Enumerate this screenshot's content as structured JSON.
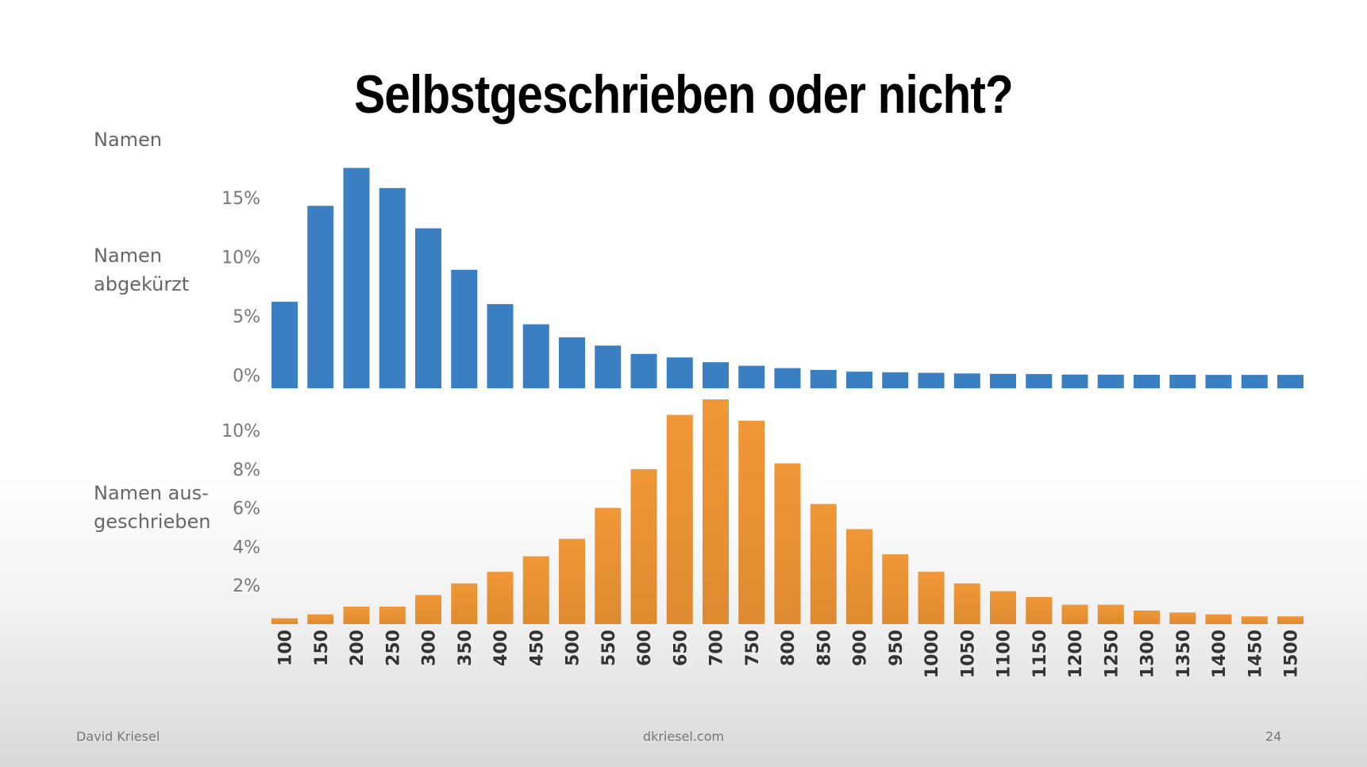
{
  "slide": {
    "title": "Selbstgeschrieben oder nicht?",
    "footer_left": "David Kriesel",
    "footer_center": "dkriesel.com",
    "footer_right": "24"
  },
  "labels": {
    "top": "Namen",
    "middle_line1": "Namen",
    "middle_line2": "abgekürzt",
    "bottom_line1": "Namen aus-",
    "bottom_line2": "geschrieben"
  },
  "colors": {
    "blue": "#3a7fc1",
    "orange": "#ef9535"
  },
  "chart_data": [
    {
      "type": "bar",
      "series_name": "Namen abgekürzt",
      "categories": [
        "100",
        "150",
        "200",
        "250",
        "300",
        "350",
        "400",
        "450",
        "500",
        "550",
        "600",
        "650",
        "700",
        "750",
        "800",
        "850",
        "900",
        "950",
        "1000",
        "1050",
        "1100",
        "1150",
        "1200",
        "1250",
        "1300",
        "1350",
        "1400",
        "1450",
        "1500"
      ],
      "values": [
        6.2,
        14.3,
        17.5,
        15.8,
        12.4,
        8.9,
        6.0,
        4.3,
        3.2,
        2.5,
        1.8,
        1.5,
        1.1,
        0.8,
        0.6,
        0.45,
        0.3,
        0.25,
        0.2,
        0.15,
        0.12,
        0.1,
        0.06,
        0.05,
        0.04,
        0.04,
        0.03,
        0.03,
        0.03
      ],
      "yticks": [
        "0%",
        "5%",
        "10%",
        "15%"
      ],
      "ytick_values": [
        0,
        5,
        10,
        15
      ],
      "ylim": [
        -1.1,
        18
      ],
      "grid": false
    },
    {
      "type": "bar",
      "series_name": "Namen ausgeschrieben",
      "categories": [
        "100",
        "150",
        "200",
        "250",
        "300",
        "350",
        "400",
        "450",
        "500",
        "550",
        "600",
        "650",
        "700",
        "750",
        "800",
        "850",
        "900",
        "950",
        "1000",
        "1050",
        "1100",
        "1150",
        "1200",
        "1250",
        "1300",
        "1350",
        "1400",
        "1450",
        "1500"
      ],
      "values": [
        0.3,
        0.5,
        0.9,
        0.9,
        1.5,
        2.1,
        2.7,
        3.5,
        4.4,
        6.0,
        8.0,
        10.8,
        11.6,
        10.5,
        8.3,
        6.2,
        4.9,
        3.6,
        2.7,
        2.1,
        1.7,
        1.4,
        1.0,
        1.0,
        0.7,
        0.6,
        0.5,
        0.4,
        0.4
      ],
      "yticks": [
        "2%",
        "4%",
        "6%",
        "8%",
        "10%"
      ],
      "ytick_values": [
        2,
        4,
        6,
        8,
        10
      ],
      "ylim": [
        0,
        11.6
      ],
      "grid": false
    }
  ]
}
